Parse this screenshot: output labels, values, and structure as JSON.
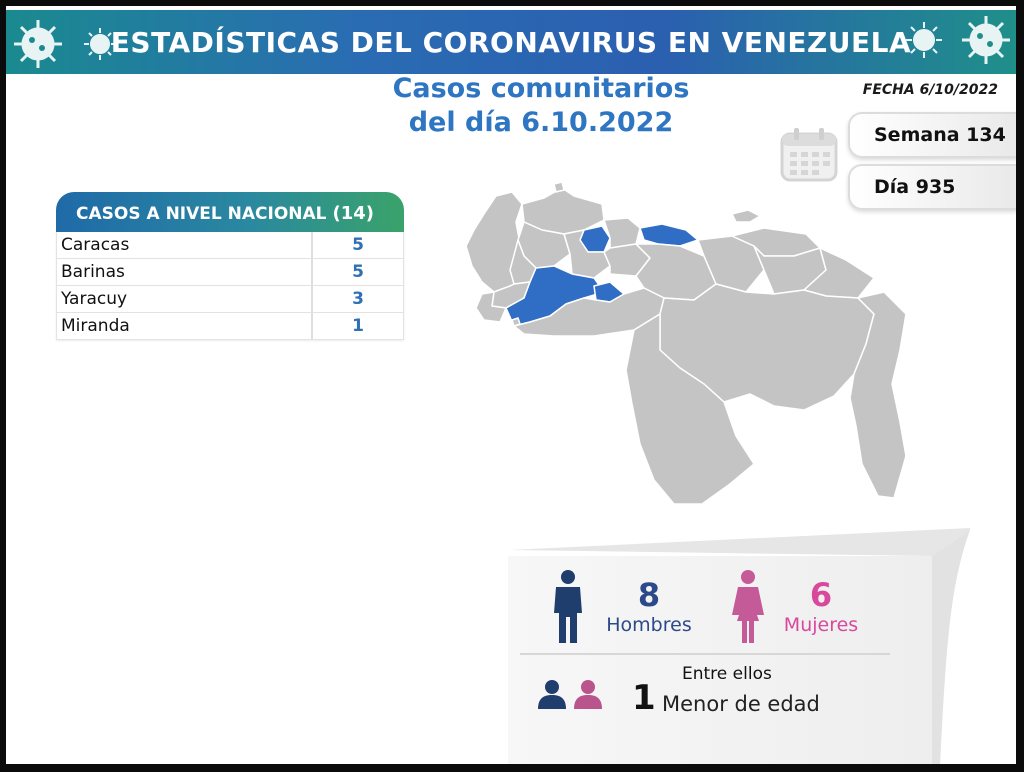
{
  "header": {
    "title": "ESTADÍSTICAS DEL CORONAVIRUS EN VENEZUELA",
    "fecha": "FECHA 6/10/2022"
  },
  "subtitle": {
    "line1": "Casos comunitarios",
    "line2": "del día 6.10.2022"
  },
  "counters": {
    "semana": "Semana 134",
    "dia": "Día 935"
  },
  "table": {
    "title": "CASOS A NIVEL NACIONAL",
    "total": "(14)",
    "rows": [
      {
        "state": "Caracas",
        "value": "5"
      },
      {
        "state": "Barinas",
        "value": "5"
      },
      {
        "state": "Yaracuy",
        "value": "3"
      },
      {
        "state": "Miranda",
        "value": "1"
      }
    ]
  },
  "stats": {
    "men_count": "8",
    "men_label": "Hombres",
    "women_count": "6",
    "women_label": "Mujeres",
    "entre_label": "Entre ellos",
    "minor_count": "1",
    "minor_label": "Menor de edad"
  },
  "colors": {
    "accent_blue": "#2e75c2",
    "highlight_state": "#2f6ec4",
    "state_gray": "#c4c4c4",
    "men": "#2c4a8a",
    "women": "#d8499b"
  },
  "icons": [
    "virus-icon",
    "calendar-icon",
    "man-icon",
    "woman-icon",
    "minor-man-icon",
    "minor-woman-icon"
  ]
}
